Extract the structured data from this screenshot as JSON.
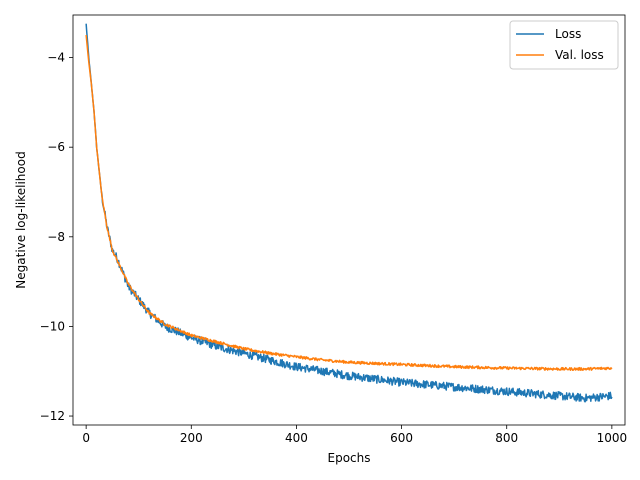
{
  "chart_data": {
    "type": "line",
    "xlabel": "Epochs",
    "ylabel": "Negative log-likelihood",
    "xlim": [
      -25,
      1025
    ],
    "ylim": [
      -12.2,
      -3.05
    ],
    "xticks": [
      0,
      200,
      400,
      600,
      800,
      1000
    ],
    "yticks": [
      -12,
      -10,
      -8,
      -6,
      -4
    ],
    "xtick_labels": [
      "0",
      "200",
      "400",
      "600",
      "800",
      "1000"
    ],
    "ytick_labels": [
      "−12",
      "−10",
      "−8",
      "−6",
      "−4"
    ],
    "legend_position": "top-right",
    "grid": false,
    "series": [
      {
        "name": "Loss",
        "color": "#1f77b4",
        "x": [
          0,
          5,
          10,
          15,
          20,
          30,
          40,
          50,
          60,
          70,
          80,
          100,
          120,
          150,
          200,
          250,
          300,
          350,
          400,
          450,
          500,
          600,
          700,
          800,
          850,
          900,
          950,
          1000
        ],
        "values": [
          -3.25,
          -4.0,
          -4.6,
          -5.2,
          -6.0,
          -7.1,
          -7.8,
          -8.3,
          -8.5,
          -8.8,
          -9.1,
          -9.4,
          -9.7,
          -10.0,
          -10.25,
          -10.45,
          -10.6,
          -10.75,
          -10.9,
          -11.0,
          -11.1,
          -11.25,
          -11.35,
          -11.45,
          -11.5,
          -11.55,
          -11.6,
          -11.55
        ],
        "noise": 0.09
      },
      {
        "name": "Val. loss",
        "color": "#ff7f0e",
        "x": [
          0,
          5,
          10,
          15,
          20,
          30,
          40,
          50,
          60,
          70,
          80,
          100,
          120,
          150,
          200,
          250,
          300,
          350,
          400,
          450,
          500,
          600,
          700,
          800,
          850,
          900,
          950,
          1000
        ],
        "values": [
          -3.5,
          -4.1,
          -4.6,
          -5.2,
          -6.0,
          -7.1,
          -7.8,
          -8.3,
          -8.55,
          -8.8,
          -9.05,
          -9.4,
          -9.7,
          -9.95,
          -10.2,
          -10.35,
          -10.5,
          -10.6,
          -10.68,
          -10.75,
          -10.8,
          -10.85,
          -10.9,
          -10.93,
          -10.94,
          -10.95,
          -10.95,
          -10.93
        ],
        "noise": 0.03
      }
    ]
  }
}
